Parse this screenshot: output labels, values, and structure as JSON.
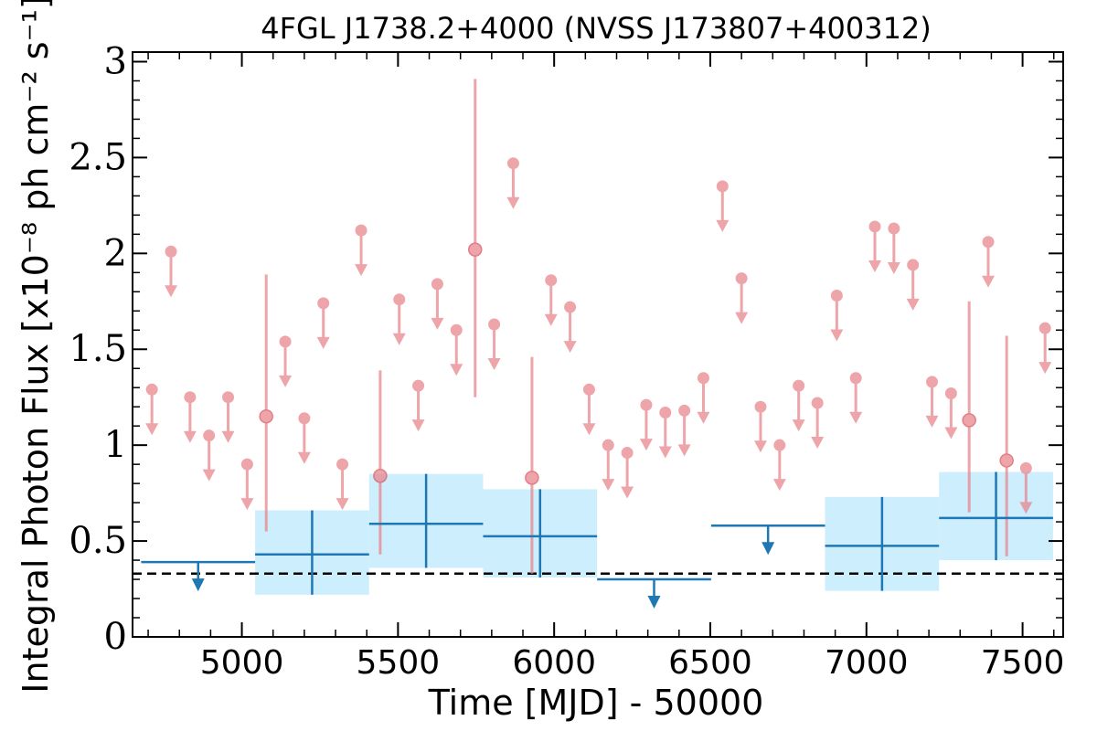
{
  "chart_data": {
    "type": "scatter",
    "title": "4FGL J1738.2+4000 (NVSS J173807+400312)",
    "xlabel": "Time [MJD] - 50000",
    "ylabel": "Integral Photon Flux [x10⁻⁸ ph cm⁻² s⁻¹]",
    "xlim": [
      4650,
      7630
    ],
    "ylim": [
      0,
      3.05
    ],
    "x_ticks": [
      5000,
      5500,
      6000,
      6500,
      7000,
      7500
    ],
    "y_ticks": [
      0,
      0.5,
      1,
      1.5,
      2,
      2.5,
      3
    ],
    "y_tick_labels": [
      "0",
      "0.5",
      "1",
      "1.5",
      "2",
      "2.5",
      "3"
    ],
    "reference_line": {
      "y": 0.33,
      "style": "dashed",
      "color": "#000000"
    },
    "colors": {
      "fine": "#e8878e",
      "coarse": "#1f77b4",
      "band": "#cdeefc"
    },
    "series": [
      {
        "bin_width": 365,
        "detections": [
          {
            "x": 5225,
            "y": 0.43,
            "ylo": 0.22,
            "yhi": 0.66
          },
          {
            "x": 5590,
            "y": 0.59,
            "ylo": 0.36,
            "yhi": 0.85
          },
          {
            "x": 5955,
            "y": 0.525,
            "ylo": 0.31,
            "yhi": 0.77
          },
          {
            "x": 7050,
            "y": 0.475,
            "ylo": 0.24,
            "yhi": 0.73
          },
          {
            "x": 7415,
            "y": 0.62,
            "ylo": 0.4,
            "yhi": 0.86
          }
        ],
        "upper_limits": [
          {
            "x": 4860,
            "y": 0.39
          },
          {
            "x": 6320,
            "y": 0.3
          },
          {
            "x": 6685,
            "y": 0.58
          }
        ]
      },
      {
        "bin_width": 61,
        "detections": [
          {
            "x": 5078,
            "y": 1.15,
            "ylo": 0.55,
            "yhi": 1.89
          },
          {
            "x": 5443,
            "y": 0.84,
            "ylo": 0.43,
            "yhi": 1.39
          },
          {
            "x": 5747,
            "y": 2.02,
            "ylo": 1.25,
            "yhi": 2.91
          },
          {
            "x": 5929,
            "y": 0.83,
            "ylo": 0.33,
            "yhi": 1.46
          },
          {
            "x": 7329,
            "y": 1.13,
            "ylo": 0.65,
            "yhi": 1.75
          },
          {
            "x": 7449,
            "y": 0.92,
            "ylo": 0.42,
            "yhi": 1.57
          }
        ],
        "upper_limits": [
          {
            "x": 4712,
            "y": 1.29
          },
          {
            "x": 4773,
            "y": 2.01
          },
          {
            "x": 4834,
            "y": 1.25
          },
          {
            "x": 4895,
            "y": 1.05
          },
          {
            "x": 4956,
            "y": 1.25
          },
          {
            "x": 5017,
            "y": 0.9
          },
          {
            "x": 5139,
            "y": 1.54
          },
          {
            "x": 5200,
            "y": 1.14
          },
          {
            "x": 5261,
            "y": 1.74
          },
          {
            "x": 5322,
            "y": 0.9
          },
          {
            "x": 5382,
            "y": 2.12
          },
          {
            "x": 5504,
            "y": 1.76
          },
          {
            "x": 5565,
            "y": 1.31
          },
          {
            "x": 5626,
            "y": 1.84
          },
          {
            "x": 5687,
            "y": 1.6
          },
          {
            "x": 5808,
            "y": 1.63
          },
          {
            "x": 5869,
            "y": 2.47
          },
          {
            "x": 5990,
            "y": 1.86
          },
          {
            "x": 6051,
            "y": 1.72
          },
          {
            "x": 6112,
            "y": 1.29
          },
          {
            "x": 6173,
            "y": 1.0
          },
          {
            "x": 6234,
            "y": 0.96
          },
          {
            "x": 6295,
            "y": 1.21
          },
          {
            "x": 6356,
            "y": 1.17
          },
          {
            "x": 6417,
            "y": 1.18
          },
          {
            "x": 6478,
            "y": 1.35
          },
          {
            "x": 6539,
            "y": 2.35
          },
          {
            "x": 6600,
            "y": 1.87
          },
          {
            "x": 6661,
            "y": 1.2
          },
          {
            "x": 6722,
            "y": 1.0
          },
          {
            "x": 6783,
            "y": 1.31
          },
          {
            "x": 6843,
            "y": 1.22
          },
          {
            "x": 6905,
            "y": 1.78
          },
          {
            "x": 6966,
            "y": 1.35
          },
          {
            "x": 7027,
            "y": 2.14
          },
          {
            "x": 7088,
            "y": 2.13
          },
          {
            "x": 7149,
            "y": 1.94
          },
          {
            "x": 7210,
            "y": 1.33
          },
          {
            "x": 7271,
            "y": 1.27
          },
          {
            "x": 7390,
            "y": 2.06
          },
          {
            "x": 7511,
            "y": 0.88
          },
          {
            "x": 7572,
            "y": 1.61
          }
        ]
      }
    ]
  }
}
